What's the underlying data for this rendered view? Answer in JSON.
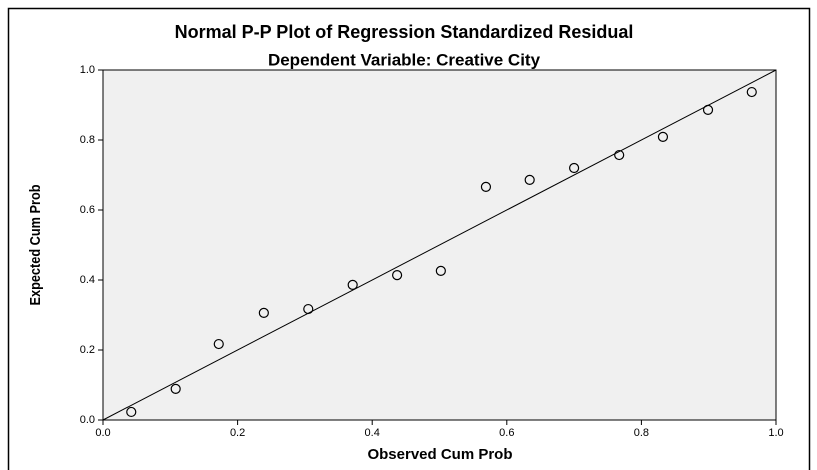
{
  "chart_data": {
    "type": "scatter",
    "title": "Normal P-P Plot of Regression Standardized Residual",
    "subtitle": "Dependent Variable: Creative City",
    "xlabel": "Observed Cum Prob",
    "ylabel": "Expected Cum Prob",
    "x": [
      0.042,
      0.108,
      0.172,
      0.239,
      0.305,
      0.371,
      0.437,
      0.502,
      0.569,
      0.634,
      0.7,
      0.767,
      0.832,
      0.899,
      0.964
    ],
    "values": [
      0.023,
      0.089,
      0.217,
      0.306,
      0.317,
      0.386,
      0.414,
      0.426,
      0.666,
      0.686,
      0.72,
      0.757,
      0.809,
      0.886,
      0.937
    ],
    "color": "#000000",
    "xlim": [
      0,
      1
    ],
    "ylim": [
      0,
      1
    ],
    "xticks": [
      {
        "value": 0,
        "label": "0.0"
      },
      0.2,
      0.4,
      0.6,
      0.8,
      {
        "value": 1,
        "label": "1.0"
      }
    ],
    "yticks": [
      {
        "value": 0,
        "label": "0.0"
      },
      0.2,
      0.4,
      0.6,
      0.8,
      {
        "value": 1,
        "label": "1.0"
      }
    ],
    "grid": false
  }
}
